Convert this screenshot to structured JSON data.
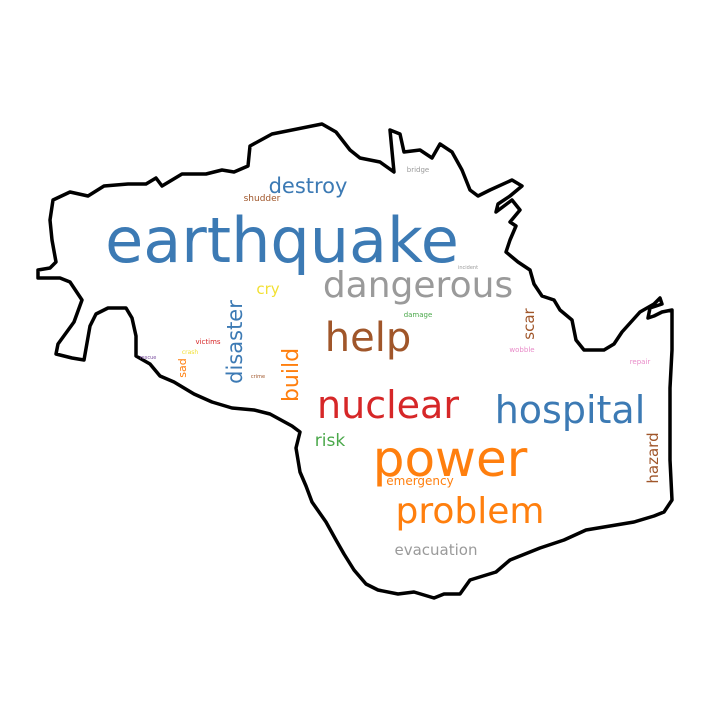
{
  "colors": {
    "outline": "#000000",
    "background": "#ffffff"
  },
  "words": [
    {
      "id": "earthquake",
      "text": "earthquake",
      "color": "#3c7ab4"
    },
    {
      "id": "dangerous",
      "text": "dangerous",
      "color": "#9a9a9a"
    },
    {
      "id": "help",
      "text": "help",
      "color": "#a0562a"
    },
    {
      "id": "destroy",
      "text": "destroy",
      "color": "#3c7ab4"
    },
    {
      "id": "shudder",
      "text": "shudder",
      "color": "#a0562a"
    },
    {
      "id": "bridge",
      "text": "bridge",
      "color": "#9a9a9a"
    },
    {
      "id": "incident",
      "text": "incident",
      "color": "#9a9a9a"
    },
    {
      "id": "cry",
      "text": "cry",
      "color": "#f2e034"
    },
    {
      "id": "disaster",
      "text": "disaster",
      "color": "#3c7ab4"
    },
    {
      "id": "damage",
      "text": "damage",
      "color": "#4aa84a"
    },
    {
      "id": "scar",
      "text": "scar",
      "color": "#a0562a"
    },
    {
      "id": "wobble",
      "text": "wobble",
      "color": "#e88ac8"
    },
    {
      "id": "victims",
      "text": "victims",
      "color": "#d62728"
    },
    {
      "id": "rescue",
      "text": "rescue",
      "color": "#7b4ea0"
    },
    {
      "id": "crash",
      "text": "crash",
      "color": "#f2e034"
    },
    {
      "id": "sad",
      "text": "sad",
      "color": "#ff7f0e"
    },
    {
      "id": "crime",
      "text": "crime",
      "color": "#a0562a"
    },
    {
      "id": "build",
      "text": "build",
      "color": "#ff7f0e"
    },
    {
      "id": "repair",
      "text": "repair",
      "color": "#e88ac8"
    },
    {
      "id": "nuclear",
      "text": "nuclear",
      "color": "#d62728"
    },
    {
      "id": "hospital",
      "text": "hospital",
      "color": "#3c7ab4"
    },
    {
      "id": "risk",
      "text": "risk",
      "color": "#4aa84a"
    },
    {
      "id": "power",
      "text": "power",
      "color": "#ff7f0e"
    },
    {
      "id": "hazard",
      "text": "hazard",
      "color": "#a0562a"
    },
    {
      "id": "emergency",
      "text": "emergency",
      "color": "#ff7f0e"
    },
    {
      "id": "problem",
      "text": "problem",
      "color": "#ff7f0e"
    },
    {
      "id": "evacuation",
      "text": "evacuation",
      "color": "#9a9a9a"
    }
  ]
}
